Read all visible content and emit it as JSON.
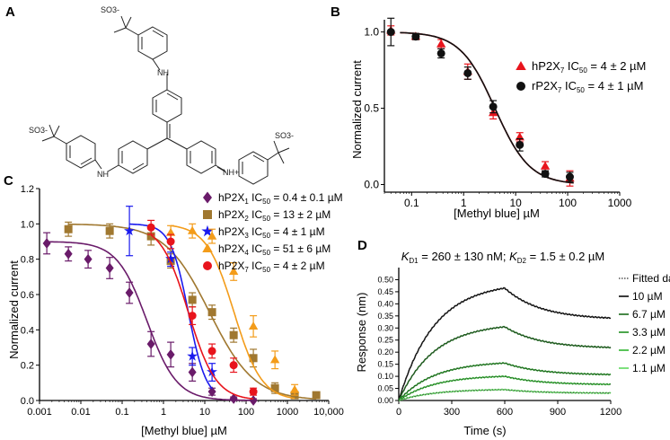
{
  "panel_labels": {
    "a": "A",
    "b": "B",
    "c": "C",
    "d": "D"
  },
  "structure": {
    "groups": [
      "SO3-",
      "SO3-",
      "SO3-"
    ],
    "NH": "NH",
    "NH_plus": "NH+"
  },
  "colors": {
    "hP2X7_red": "#e8141c",
    "rP2X7_black": "#111111",
    "hP2X1": "#6a1b6a",
    "hP2X2": "#a07830",
    "hP2X3": "#1a1aee",
    "hP2X4": "#f39c1a",
    "fit_dark": "#1a5c1a"
  },
  "chart_data": [
    {
      "panel": "B",
      "type": "scatter",
      "xscale": "log",
      "xlabel": "[Methyl blue] µM",
      "ylabel": "Normalized current",
      "xlim": [
        0.03,
        1000
      ],
      "ylim": [
        -0.05,
        1.08
      ],
      "xticks": [
        "0.1",
        "1",
        "10",
        "100",
        "1000"
      ],
      "yticks": [
        "0.0",
        "0.5",
        "1.0"
      ],
      "legend_position": "right",
      "series": [
        {
          "name": "hP2X",
          "sub": "7",
          "ic_label": "IC",
          "ic_sub": "50",
          "ic_value": "= 4 ± 2 µM",
          "marker": "triangle",
          "color": "#e8141c",
          "x": [
            0.04,
            0.12,
            0.37,
            1.2,
            3.7,
            12,
            37,
            110
          ],
          "y": [
            1.01,
            0.97,
            0.92,
            0.74,
            0.47,
            0.31,
            0.12,
            0.04
          ],
          "err": [
            0.03,
            0.02,
            0.03,
            0.05,
            0.04,
            0.03,
            0.03,
            0.05
          ],
          "ic50": 4,
          "hill": 1.3
        },
        {
          "name": "rP2X",
          "sub": "7",
          "ic_label": "IC",
          "ic_sub": "50",
          "ic_value": "= 4 ± 1 µM",
          "marker": "circle",
          "color": "#111111",
          "x": [
            0.04,
            0.12,
            0.37,
            1.2,
            3.7,
            12,
            37,
            110
          ],
          "y": [
            1.0,
            0.97,
            0.86,
            0.73,
            0.51,
            0.26,
            0.07,
            0.05
          ],
          "err": [
            0.09,
            0.02,
            0.03,
            0.04,
            0.04,
            0.04,
            0.02,
            0.03
          ],
          "ic50": 4,
          "hill": 1.3
        }
      ]
    },
    {
      "panel": "C",
      "type": "scatter",
      "xscale": "log",
      "xlabel": "[Methyl blue] µM",
      "ylabel": "Normalized current",
      "xlim": [
        0.001,
        10000
      ],
      "ylim": [
        0,
        1.2
      ],
      "xticks": [
        "0.001",
        "0.01",
        "0.1",
        "1",
        "10",
        "100",
        "1000",
        "10,000"
      ],
      "yticks": [
        "0.0",
        "0.2",
        "0.4",
        "0.6",
        "0.8",
        "1.0",
        "1.2"
      ],
      "series": [
        {
          "name": "hP2X",
          "sub": "1",
          "ic_label": "IC",
          "ic_sub": "50",
          "ic_value": "= 0.4 ± 0.1 µM",
          "marker": "diamond",
          "color": "#6a1b6a",
          "x": [
            0.0015,
            0.005,
            0.015,
            0.05,
            0.15,
            0.5,
            1.5,
            5,
            15,
            50,
            150
          ],
          "y": [
            0.89,
            0.83,
            0.8,
            0.75,
            0.61,
            0.32,
            0.26,
            0.16,
            0.05,
            0.01,
            0.0
          ],
          "err": [
            0.06,
            0.04,
            0.05,
            0.06,
            0.06,
            0.07,
            0.07,
            0.05,
            0.02,
            0.01,
            0.01
          ],
          "ic50": 0.4,
          "hill": 1.2,
          "top": 0.9
        },
        {
          "name": "hP2X",
          "sub": "2",
          "ic_label": "IC",
          "ic_sub": "50",
          "ic_value": "= 13 ± 2 µM",
          "marker": "square",
          "color": "#a07830",
          "x": [
            0.005,
            0.05,
            0.5,
            1.5,
            5,
            15,
            50,
            150,
            500,
            1500,
            5000
          ],
          "y": [
            0.97,
            0.96,
            0.93,
            0.79,
            0.57,
            0.5,
            0.37,
            0.24,
            0.07,
            0.03,
            0.03
          ],
          "err": [
            0.04,
            0.04,
            0.05,
            0.04,
            0.04,
            0.04,
            0.04,
            0.05,
            0.03,
            0.02,
            0.01
          ],
          "ic50": 13,
          "hill": 0.8,
          "top": 1.0
        },
        {
          "name": "hP2X",
          "sub": "3",
          "ic_label": "IC",
          "ic_sub": "50",
          "ic_value": "= 4 ± 1 µM",
          "marker": "star",
          "color": "#1a1aee",
          "x": [
            0.15,
            1.5,
            5,
            15
          ],
          "y": [
            0.96,
            0.8,
            0.25,
            0.16
          ],
          "err": [
            0.14,
            0.04,
            0.05,
            0.05
          ],
          "ic50": 4,
          "hill": 2.0,
          "top": 1.0
        },
        {
          "name": "hP2X",
          "sub": "4",
          "ic_label": "IC",
          "ic_sub": "50",
          "ic_value": "= 51 ± 6 µM",
          "marker": "triangle",
          "color": "#f39c1a",
          "x": [
            1.5,
            5,
            15,
            50,
            150,
            500,
            1500
          ],
          "y": [
            0.95,
            0.96,
            0.93,
            0.73,
            0.42,
            0.23,
            0.06
          ],
          "err": [
            0.04,
            0.04,
            0.04,
            0.05,
            0.06,
            0.05,
            0.03
          ],
          "ic50": 51,
          "hill": 1.3,
          "top": 1.0
        },
        {
          "name": "hP2X",
          "sub": "7",
          "ic_label": "IC",
          "ic_sub": "50",
          "ic_value": "= 4 ± 2 µM",
          "marker": "circle",
          "color": "#e8141c",
          "x": [
            0.5,
            1.5,
            5,
            15,
            50,
            150
          ],
          "y": [
            0.98,
            0.9,
            0.48,
            0.28,
            0.2,
            0.05
          ],
          "err": [
            0.04,
            0.04,
            0.05,
            0.04,
            0.04,
            0.02
          ],
          "ic50": 4,
          "hill": 1.3,
          "top": 1.0
        }
      ]
    },
    {
      "panel": "D",
      "type": "line",
      "title_parts": {
        "k1": "K",
        "k1_sub": "D1",
        "v1": " = 260 ± 130 nM; ",
        "k2": "K",
        "k2_sub": "D2",
        "v2": " = 1.5 ± 0.2 µM"
      },
      "xlabel": "Time (s)",
      "ylabel": "Response (nm)",
      "xlim": [
        0,
        1200
      ],
      "ylim": [
        0,
        0.55
      ],
      "xticks": [
        "0",
        "300",
        "600",
        "900",
        "1200"
      ],
      "yticks": [
        "0.00",
        "0.05",
        "0.10",
        "0.15",
        "0.20",
        "0.25",
        "0.30",
        "0.35",
        "0.40",
        "0.45",
        "0.50"
      ],
      "fitted_label": "Fitted data",
      "association_end": 600,
      "series": [
        {
          "name": "10 µM",
          "color": "#0a0a0a",
          "rmax": 0.465,
          "end": 0.335,
          "k": 0.005
        },
        {
          "name": "6.7 µM",
          "color": "#1a6b1a",
          "rmax": 0.305,
          "end": 0.215,
          "k": 0.005
        },
        {
          "name": "3.3 µM",
          "color": "#1f8f1f",
          "rmax": 0.155,
          "end": 0.105,
          "k": 0.005
        },
        {
          "name": "2.2 µM",
          "color": "#2fb52f",
          "rmax": 0.1,
          "end": 0.065,
          "k": 0.005
        },
        {
          "name": "1.1 µM",
          "color": "#5ed85e",
          "rmax": 0.045,
          "end": 0.03,
          "k": 0.005
        }
      ]
    }
  ]
}
